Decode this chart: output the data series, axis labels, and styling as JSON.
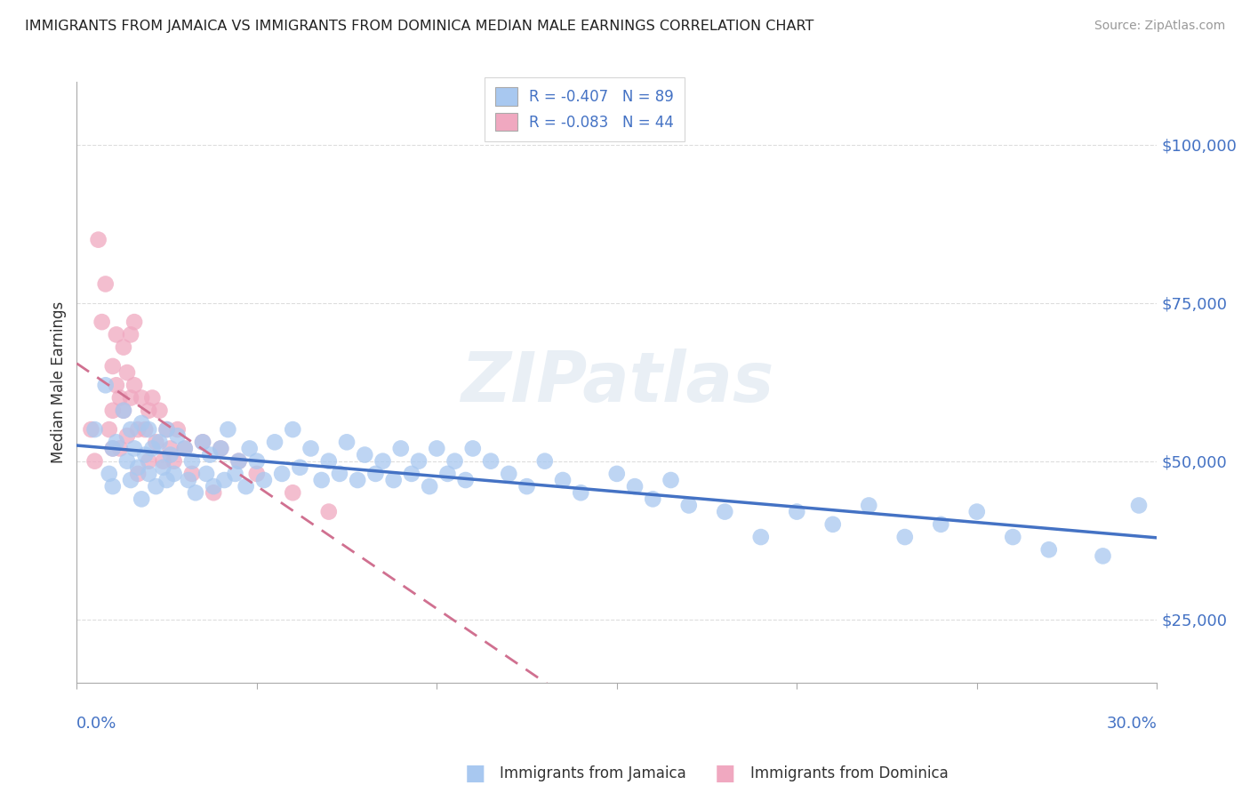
{
  "title": "IMMIGRANTS FROM JAMAICA VS IMMIGRANTS FROM DOMINICA MEDIAN MALE EARNINGS CORRELATION CHART",
  "source": "Source: ZipAtlas.com",
  "ylabel": "Median Male Earnings",
  "xlim": [
    0.0,
    0.3
  ],
  "ylim": [
    15000,
    110000
  ],
  "yticks": [
    25000,
    50000,
    75000,
    100000
  ],
  "ytick_labels": [
    "$25,000",
    "$50,000",
    "$75,000",
    "$100,000"
  ],
  "legend_r1": "-0.407",
  "legend_n1": "89",
  "legend_r2": "-0.083",
  "legend_n2": "44",
  "color_jamaica": "#a8c8f0",
  "color_dominica": "#f0a8c0",
  "color_line_jamaica": "#4472c4",
  "color_line_dominica": "#d07090",
  "color_axis": "#4472c4",
  "jamaica_x": [
    0.005,
    0.008,
    0.009,
    0.01,
    0.01,
    0.011,
    0.013,
    0.014,
    0.015,
    0.015,
    0.016,
    0.017,
    0.018,
    0.018,
    0.019,
    0.02,
    0.02,
    0.021,
    0.022,
    0.023,
    0.024,
    0.025,
    0.025,
    0.026,
    0.027,
    0.028,
    0.03,
    0.031,
    0.032,
    0.033,
    0.035,
    0.036,
    0.037,
    0.038,
    0.04,
    0.041,
    0.042,
    0.044,
    0.045,
    0.047,
    0.048,
    0.05,
    0.052,
    0.055,
    0.057,
    0.06,
    0.062,
    0.065,
    0.068,
    0.07,
    0.073,
    0.075,
    0.078,
    0.08,
    0.083,
    0.085,
    0.088,
    0.09,
    0.093,
    0.095,
    0.098,
    0.1,
    0.103,
    0.105,
    0.108,
    0.11,
    0.115,
    0.12,
    0.125,
    0.13,
    0.135,
    0.14,
    0.15,
    0.155,
    0.16,
    0.165,
    0.17,
    0.18,
    0.19,
    0.2,
    0.21,
    0.22,
    0.23,
    0.24,
    0.25,
    0.26,
    0.27,
    0.285,
    0.295
  ],
  "jamaica_y": [
    55000,
    62000,
    48000,
    52000,
    46000,
    53000,
    58000,
    50000,
    55000,
    47000,
    52000,
    49000,
    56000,
    44000,
    51000,
    55000,
    48000,
    52000,
    46000,
    53000,
    49000,
    55000,
    47000,
    51000,
    48000,
    54000,
    52000,
    47000,
    50000,
    45000,
    53000,
    48000,
    51000,
    46000,
    52000,
    47000,
    55000,
    48000,
    50000,
    46000,
    52000,
    50000,
    47000,
    53000,
    48000,
    55000,
    49000,
    52000,
    47000,
    50000,
    48000,
    53000,
    47000,
    51000,
    48000,
    50000,
    47000,
    52000,
    48000,
    50000,
    46000,
    52000,
    48000,
    50000,
    47000,
    52000,
    50000,
    48000,
    46000,
    50000,
    47000,
    45000,
    48000,
    46000,
    44000,
    47000,
    43000,
    42000,
    38000,
    42000,
    40000,
    43000,
    38000,
    40000,
    42000,
    38000,
    36000,
    35000,
    43000
  ],
  "dominica_x": [
    0.004,
    0.005,
    0.006,
    0.007,
    0.008,
    0.009,
    0.01,
    0.01,
    0.01,
    0.011,
    0.011,
    0.012,
    0.012,
    0.013,
    0.013,
    0.014,
    0.014,
    0.015,
    0.015,
    0.016,
    0.016,
    0.017,
    0.017,
    0.018,
    0.019,
    0.02,
    0.02,
    0.021,
    0.022,
    0.023,
    0.024,
    0.025,
    0.026,
    0.027,
    0.028,
    0.03,
    0.032,
    0.035,
    0.038,
    0.04,
    0.045,
    0.05,
    0.06,
    0.07
  ],
  "dominica_y": [
    55000,
    50000,
    85000,
    72000,
    78000,
    55000,
    65000,
    58000,
    52000,
    70000,
    62000,
    60000,
    52000,
    68000,
    58000,
    64000,
    54000,
    70000,
    60000,
    72000,
    62000,
    55000,
    48000,
    60000,
    55000,
    58000,
    50000,
    60000,
    53000,
    58000,
    50000,
    55000,
    52000,
    50000,
    55000,
    52000,
    48000,
    53000,
    45000,
    52000,
    50000,
    48000,
    45000,
    42000
  ]
}
